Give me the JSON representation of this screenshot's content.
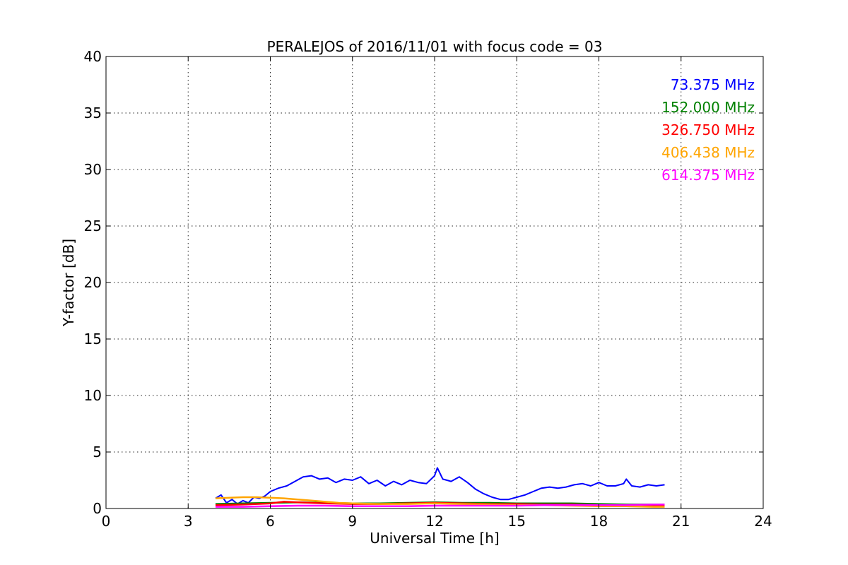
{
  "chart_data": {
    "type": "line",
    "title": "PERALEJOS of 2016/11/01 with focus code = 03",
    "xlabel": "Universal Time [h]",
    "ylabel": "Y-factor [dB]",
    "xlim": [
      0,
      24
    ],
    "ylim": [
      0,
      40
    ],
    "xticks": [
      "0",
      "3",
      "6",
      "9",
      "12",
      "15",
      "18",
      "21",
      "24"
    ],
    "yticks": [
      "0",
      "5",
      "10",
      "15",
      "20",
      "25",
      "30",
      "35",
      "40"
    ],
    "grid": true,
    "legend_position": "top-right",
    "series": [
      {
        "name": "73.375 MHz",
        "color": "#0000ff",
        "x": [
          4.0,
          4.2,
          4.4,
          4.6,
          4.8,
          5.0,
          5.2,
          5.4,
          5.6,
          5.8,
          6.0,
          6.3,
          6.6,
          6.9,
          7.2,
          7.5,
          7.8,
          8.1,
          8.4,
          8.7,
          9.0,
          9.3,
          9.6,
          9.9,
          10.2,
          10.5,
          10.8,
          11.1,
          11.4,
          11.7,
          12.0,
          12.1,
          12.3,
          12.6,
          12.9,
          13.2,
          13.5,
          13.8,
          14.1,
          14.4,
          14.7,
          15.0,
          15.3,
          15.6,
          15.9,
          16.2,
          16.5,
          16.8,
          17.1,
          17.4,
          17.7,
          18.0,
          18.3,
          18.6,
          18.9,
          19.0,
          19.2,
          19.5,
          19.8,
          20.1,
          20.4
        ],
        "y": [
          0.9,
          1.2,
          0.5,
          0.8,
          0.4,
          0.7,
          0.5,
          1.0,
          0.9,
          1.1,
          1.5,
          1.8,
          2.0,
          2.4,
          2.8,
          2.9,
          2.6,
          2.7,
          2.3,
          2.6,
          2.5,
          2.8,
          2.2,
          2.5,
          2.0,
          2.4,
          2.1,
          2.5,
          2.3,
          2.2,
          2.9,
          3.6,
          2.6,
          2.4,
          2.8,
          2.3,
          1.7,
          1.3,
          1.0,
          0.8,
          0.8,
          1.0,
          1.2,
          1.5,
          1.8,
          1.9,
          1.8,
          1.9,
          2.1,
          2.2,
          2.0,
          2.3,
          2.0,
          2.0,
          2.2,
          2.6,
          2.0,
          1.9,
          2.1,
          2.0,
          2.1
        ]
      },
      {
        "name": "152.000 MHz",
        "color": "#008000",
        "x": [
          4.0,
          5.0,
          6.0,
          7.0,
          8.0,
          9.0,
          10.0,
          11.0,
          12.0,
          13.0,
          14.0,
          15.0,
          16.0,
          17.0,
          18.0,
          19.0,
          20.0,
          20.4
        ],
        "y": [
          0.4,
          0.45,
          0.5,
          0.55,
          0.5,
          0.45,
          0.45,
          0.5,
          0.55,
          0.5,
          0.5,
          0.45,
          0.45,
          0.45,
          0.4,
          0.35,
          0.35,
          0.35
        ]
      },
      {
        "name": "326.750 MHz",
        "color": "#ff0000",
        "x": [
          4.0,
          5.0,
          6.0,
          6.5,
          7.0,
          8.0,
          9.0,
          10.0,
          11.0,
          12.0,
          13.0,
          14.0,
          15.0,
          16.0,
          17.0,
          18.0,
          19.0,
          20.0,
          20.4
        ],
        "y": [
          0.3,
          0.35,
          0.45,
          0.6,
          0.55,
          0.45,
          0.4,
          0.4,
          0.45,
          0.5,
          0.45,
          0.4,
          0.4,
          0.35,
          0.35,
          0.3,
          0.3,
          0.25,
          0.25
        ]
      },
      {
        "name": "406.438 MHz",
        "color": "#ffa500",
        "x": [
          4.0,
          4.5,
          5.0,
          5.5,
          6.0,
          6.5,
          7.0,
          7.5,
          8.0,
          8.5,
          9.0,
          10.0,
          11.0,
          12.0,
          13.0,
          14.0,
          15.0,
          16.0,
          17.0,
          18.0,
          19.0,
          20.0,
          20.4
        ],
        "y": [
          0.9,
          0.95,
          1.0,
          1.0,
          0.95,
          0.9,
          0.8,
          0.7,
          0.6,
          0.5,
          0.45,
          0.4,
          0.4,
          0.45,
          0.4,
          0.35,
          0.3,
          0.3,
          0.25,
          0.2,
          0.2,
          0.15,
          0.15
        ]
      },
      {
        "name": "614.375 MHz",
        "color": "#ff00ff",
        "x": [
          4.0,
          5.0,
          6.0,
          7.0,
          8.0,
          9.0,
          10.0,
          11.0,
          12.0,
          13.0,
          14.0,
          15.0,
          16.0,
          17.0,
          18.0,
          19.0,
          20.0,
          20.4
        ],
        "y": [
          0.15,
          0.15,
          0.2,
          0.25,
          0.25,
          0.2,
          0.2,
          0.2,
          0.25,
          0.25,
          0.25,
          0.25,
          0.3,
          0.3,
          0.3,
          0.3,
          0.35,
          0.35
        ]
      }
    ]
  }
}
